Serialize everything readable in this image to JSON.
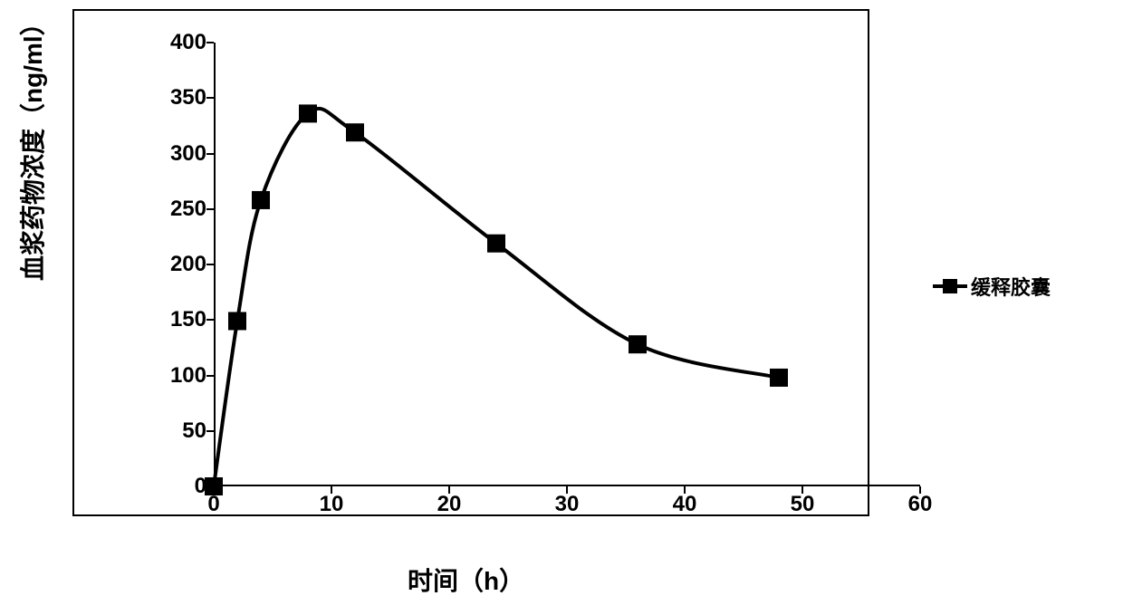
{
  "chart": {
    "type": "line",
    "x_label": "时间（h）",
    "y_label": "血浆药物浓度（ng/ml）",
    "x_label_fontsize": 28,
    "y_label_fontsize": 28,
    "tick_fontsize": 24,
    "xlim": [
      0,
      60
    ],
    "ylim": [
      0,
      400
    ],
    "x_ticks": [
      0,
      10,
      20,
      30,
      40,
      50,
      60
    ],
    "y_ticks": [
      0,
      50,
      100,
      150,
      200,
      250,
      300,
      350,
      400
    ],
    "border_color": "#000000",
    "background_color": "#ffffff",
    "line_width": 4,
    "marker_size": 20,
    "series": {
      "label": "缓释胶囊",
      "color": "#000000",
      "marker": "square",
      "points": [
        {
          "x": 0,
          "y": 0
        },
        {
          "x": 2,
          "y": 149
        },
        {
          "x": 4,
          "y": 258
        },
        {
          "x": 8,
          "y": 336
        },
        {
          "x": 12,
          "y": 319
        },
        {
          "x": 24,
          "y": 219
        },
        {
          "x": 36,
          "y": 128
        },
        {
          "x": 48,
          "y": 98
        }
      ]
    },
    "legend_fontsize": 22
  }
}
